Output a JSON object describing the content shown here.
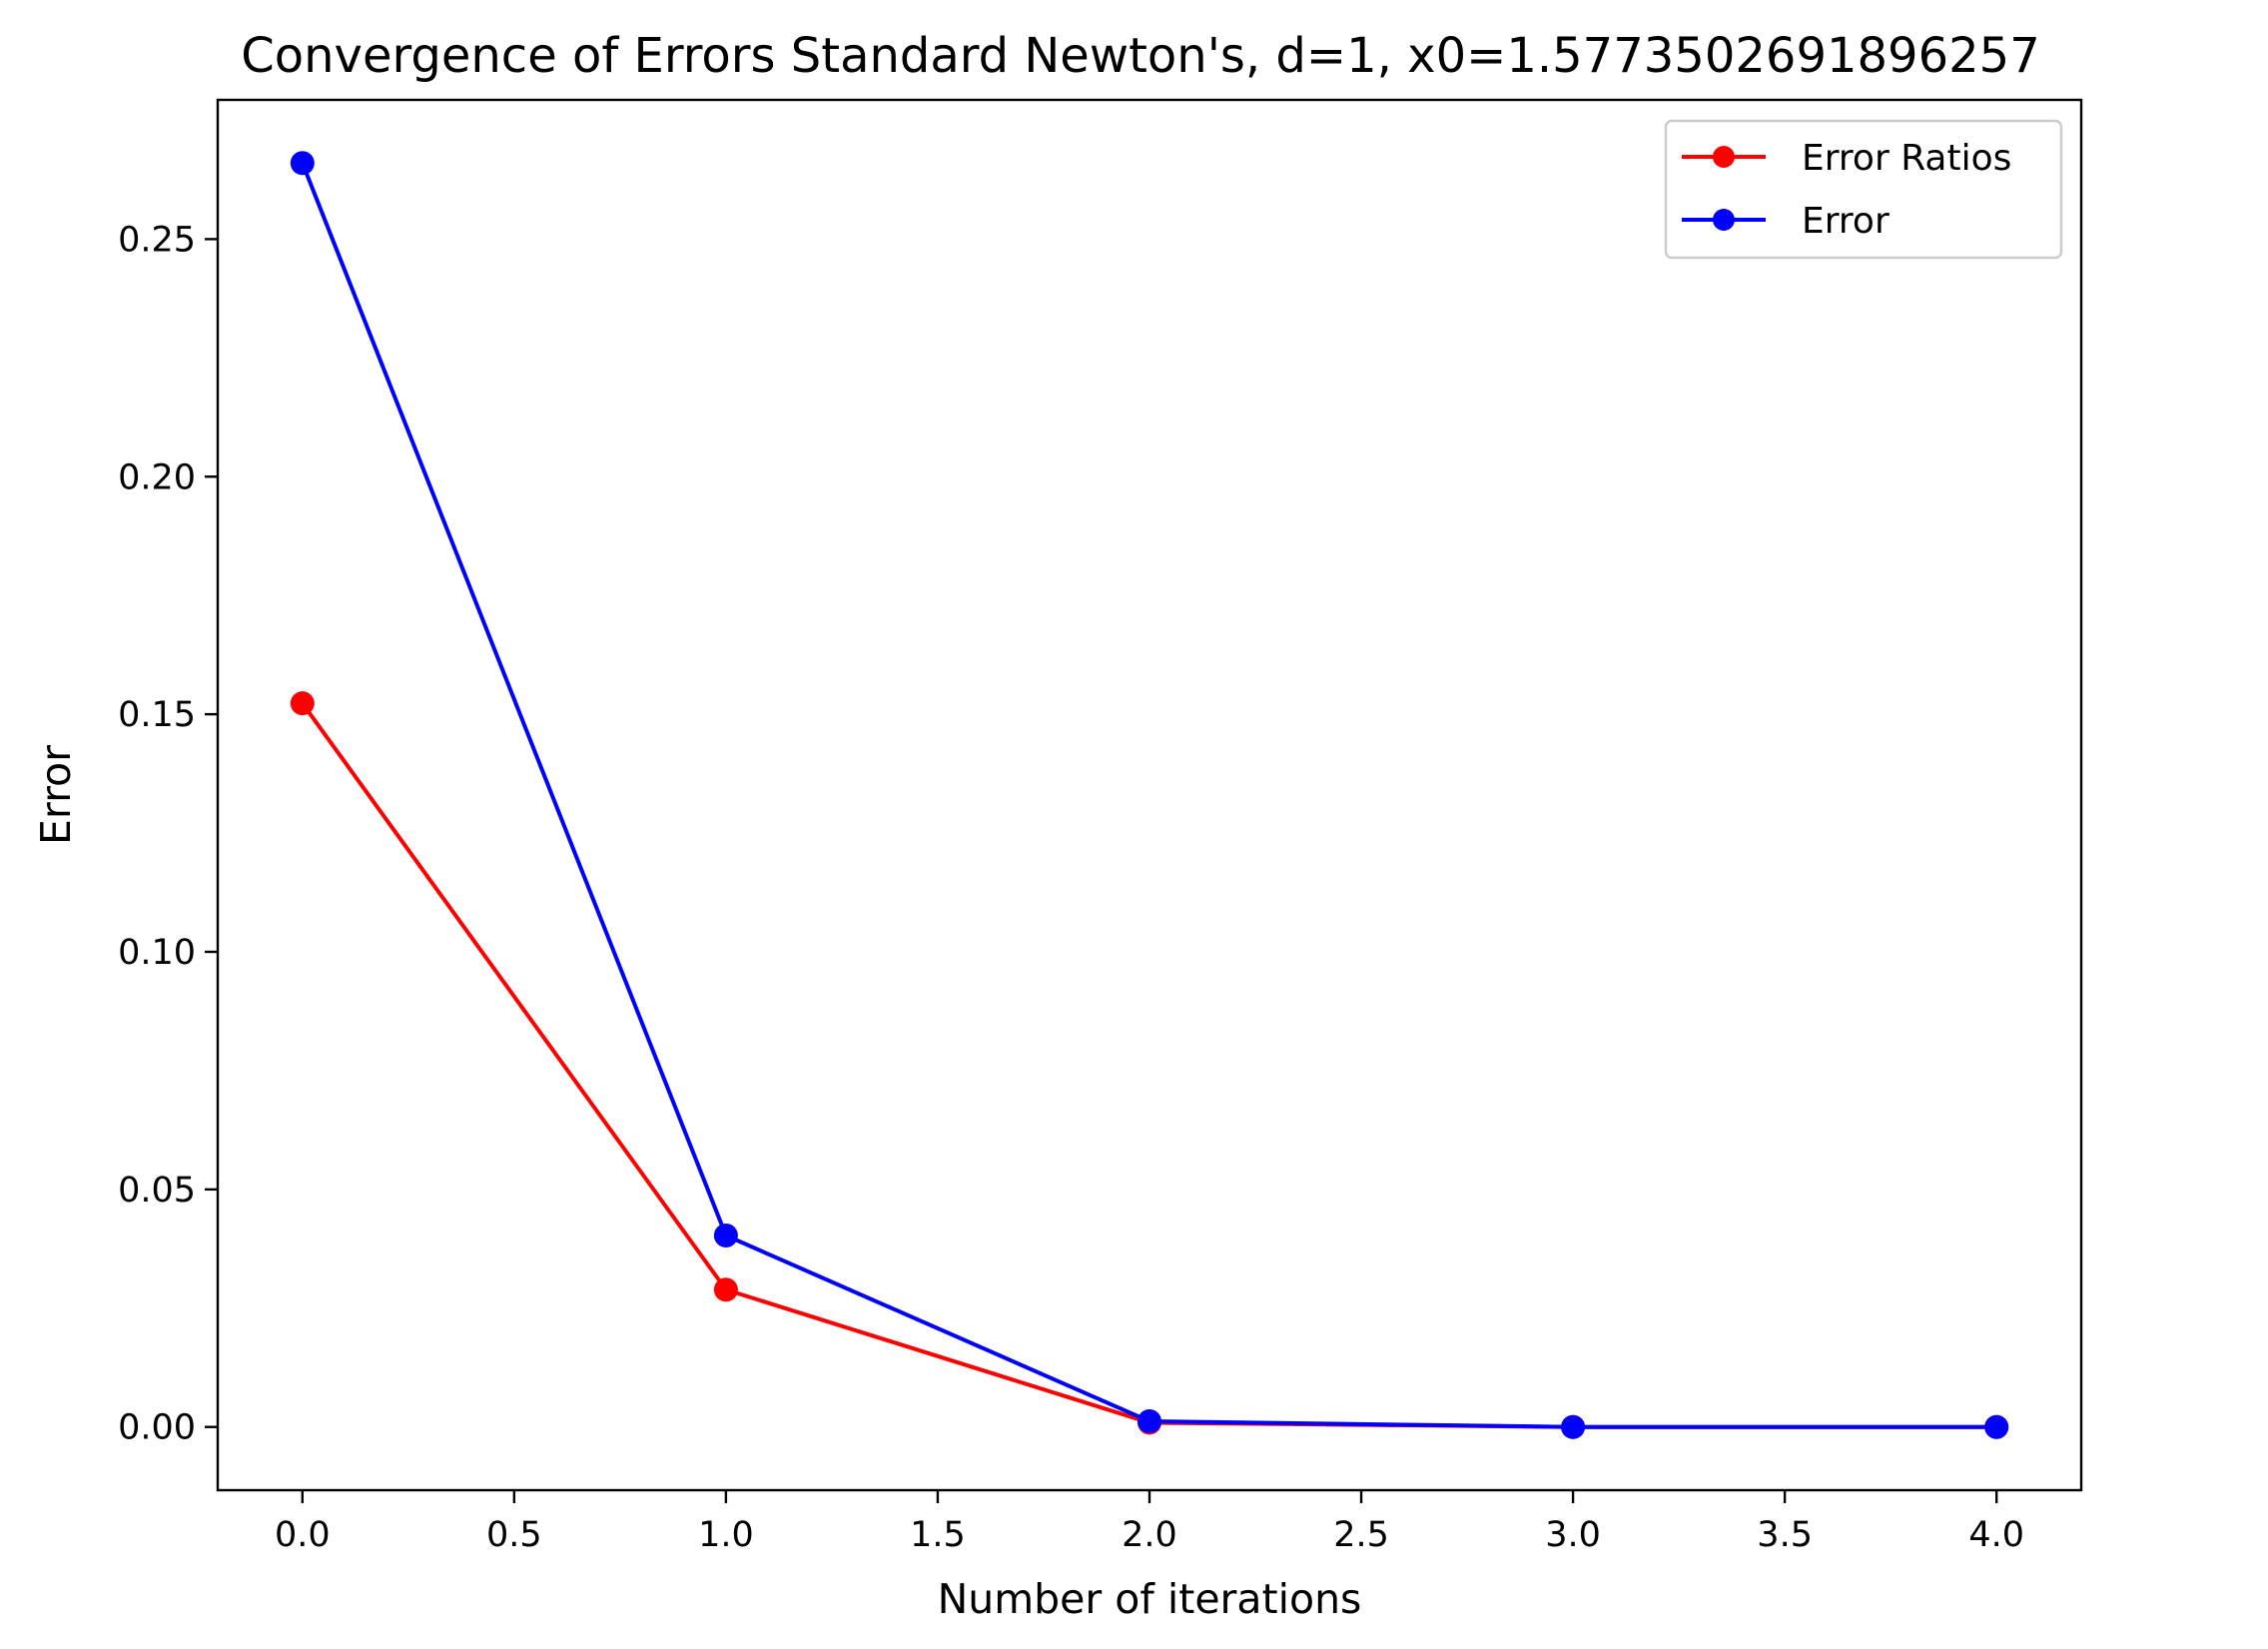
{
  "chart_data": {
    "type": "line",
    "title": "Convergence of Errors Standard Newton's, d=1, x0=1.5773502691896257",
    "xlabel": "Number of iterations",
    "ylabel": "Error",
    "xlim": [
      -0.2,
      4.2
    ],
    "ylim": [
      -0.0133,
      0.2793
    ],
    "x": [
      0,
      1,
      2,
      3,
      4
    ],
    "xticks": [
      0.0,
      0.5,
      1.0,
      1.5,
      2.0,
      2.5,
      3.0,
      3.5,
      4.0
    ],
    "xtick_labels": [
      "0.0",
      "0.5",
      "1.0",
      "1.5",
      "2.0",
      "2.5",
      "3.0",
      "3.5",
      "4.0"
    ],
    "yticks": [
      0.0,
      0.05,
      0.1,
      0.15,
      0.2,
      0.25
    ],
    "ytick_labels": [
      "0.00",
      "0.05",
      "0.10",
      "0.15",
      "0.20",
      "0.25"
    ],
    "grid": false,
    "legend_position": "top-right",
    "series": [
      {
        "name": "Error Ratios",
        "color": "#ff0000",
        "values": [
          0.1523,
          0.0289,
          0.0009,
          0.0,
          0.0
        ]
      },
      {
        "name": "Error",
        "color": "#0000ff",
        "values": [
          0.266,
          0.0403,
          0.0012,
          0.0,
          0.0
        ]
      }
    ]
  }
}
